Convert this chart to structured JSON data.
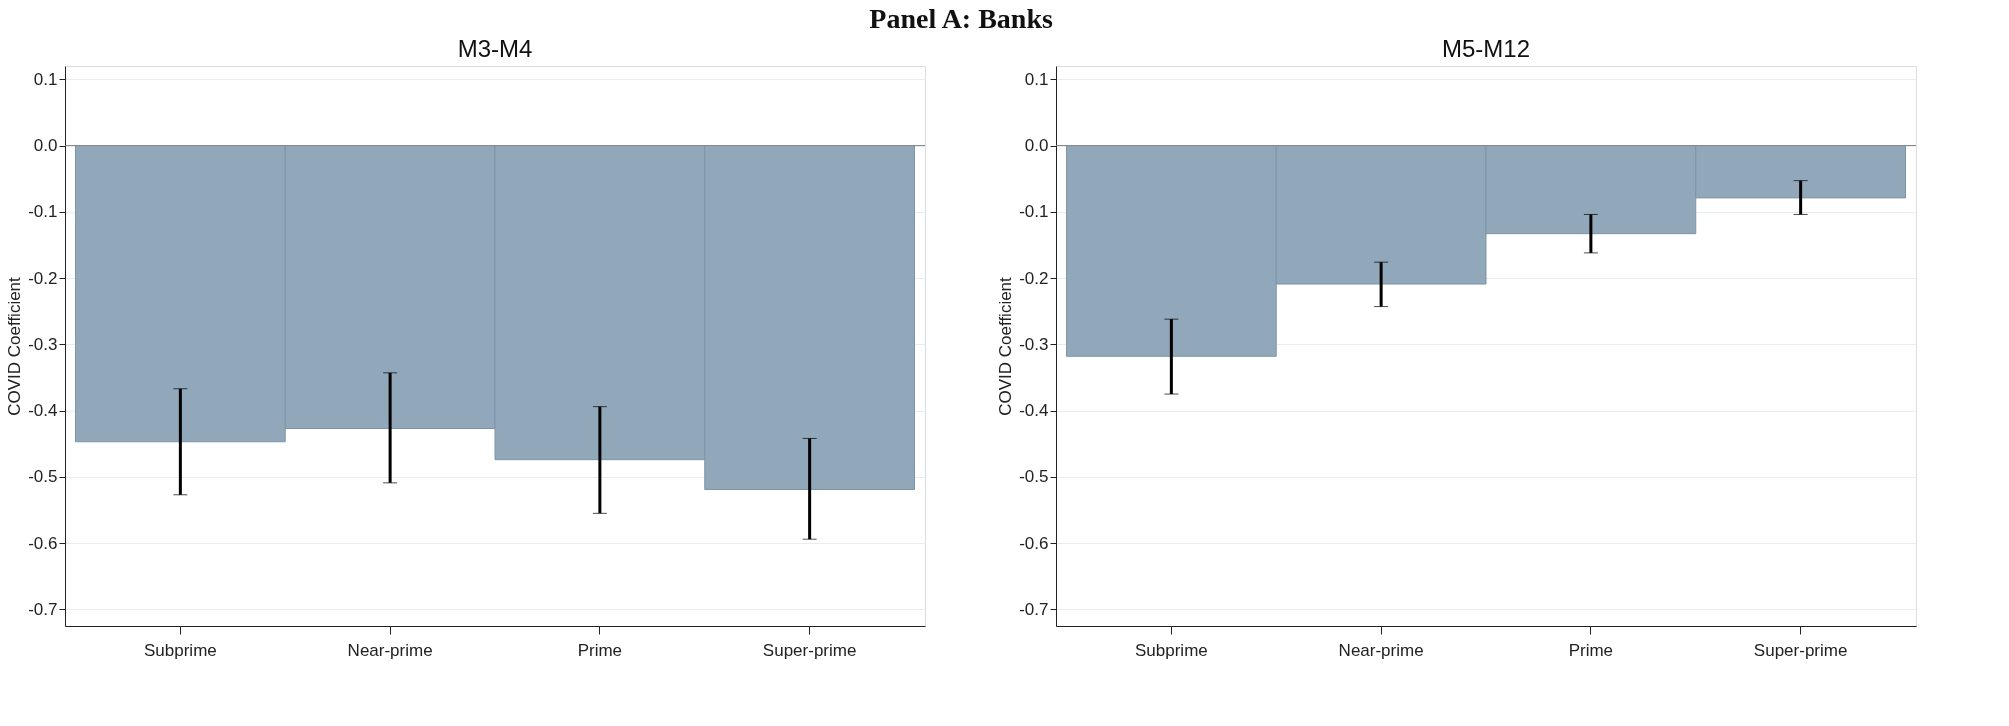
{
  "chart_data": [
    {
      "type": "bar",
      "title": "M3-M4",
      "ylabel": "COVID Coefficient",
      "annotations": [
        "Panel A: Banks"
      ],
      "categories": [
        "Subprime",
        "Near-prime",
        "Prime",
        "Super-prime"
      ],
      "series": [
        {
          "color": "#91a8bb",
          "values": [
            -0.447,
            -0.427,
            -0.474,
            -0.519
          ],
          "errors": [
            [
              -0.527,
              -0.367
            ],
            [
              -0.509,
              -0.343
            ],
            [
              -0.555,
              -0.394
            ],
            [
              -0.594,
              -0.442
            ]
          ]
        }
      ],
      "ylim": [
        -0.725,
        0.12
      ],
      "yticks": [
        {
          "value": 0.1,
          "label": "0.1"
        },
        {
          "value": 0,
          "label": "0.0"
        },
        {
          "value": -0.1,
          "label": "-0.1"
        },
        {
          "value": -0.2,
          "label": "-0.2"
        },
        {
          "value": -0.3,
          "label": "-0.3"
        },
        {
          "value": -0.4,
          "label": "-0.4"
        },
        {
          "value": -0.5,
          "label": "-0.5"
        },
        {
          "value": -0.6,
          "label": "-0.6"
        },
        {
          "value": -0.7,
          "label": "-0.7"
        }
      ],
      "ref_lines": [
        {
          "axis": "y",
          "value": 0,
          "color": "#8a8a8a"
        }
      ],
      "grid": "y"
    },
    {
      "type": "bar",
      "title": "M5-M12",
      "ylabel": "COVID Coefficient",
      "categories": [
        "Subprime",
        "Near-prime",
        "Prime",
        "Super-prime"
      ],
      "series": [
        {
          "color": "#91a8bb",
          "values": [
            -0.318,
            -0.209,
            -0.133,
            -0.079
          ],
          "errors": [
            [
              -0.375,
              -0.262
            ],
            [
              -0.243,
              -0.176
            ],
            [
              -0.162,
              -0.104
            ],
            [
              -0.104,
              -0.053
            ]
          ]
        }
      ],
      "ylim": [
        -0.725,
        0.12
      ],
      "yticks": [
        {
          "value": 0.1,
          "label": "0.1"
        },
        {
          "value": 0,
          "label": "0.0"
        },
        {
          "value": -0.1,
          "label": "-0.1"
        },
        {
          "value": -0.2,
          "label": "-0.2"
        },
        {
          "value": -0.3,
          "label": "-0.3"
        },
        {
          "value": -0.4,
          "label": "-0.4"
        },
        {
          "value": -0.5,
          "label": "-0.5"
        },
        {
          "value": -0.6,
          "label": "-0.6"
        },
        {
          "value": -0.7,
          "label": "-0.7"
        }
      ],
      "ref_lines": [
        {
          "axis": "y",
          "value": 0,
          "color": "#8a8a8a"
        }
      ],
      "grid": "y"
    }
  ]
}
